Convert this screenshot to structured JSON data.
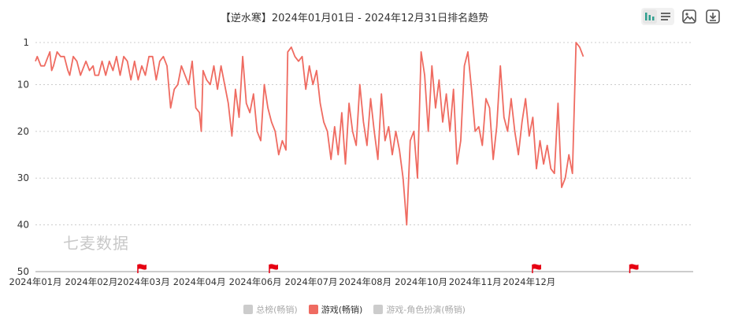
{
  "title": "【逆水寒】2024年01月01日 - 2024年12月31日排名趋势",
  "watermark": "七麦数据",
  "toolbar": {
    "icons": [
      "bar-view-icon",
      "list-view-icon",
      "image-icon",
      "download-icon"
    ]
  },
  "colors": {
    "line": "#ef6b61",
    "grid": "#cccccc",
    "axis_text": "#333333",
    "legend_inactive": "#cccccc",
    "flag": "#e60012"
  },
  "legend": [
    {
      "label": "总榜(畅销)",
      "active": false
    },
    {
      "label": "游戏(畅销)",
      "active": true
    },
    {
      "label": "游戏-角色扮演(畅销)",
      "active": false
    }
  ],
  "chart_data": {
    "type": "line",
    "y_axis": {
      "inverted": true,
      "range": [
        1,
        50
      ],
      "ticks": [
        1,
        10,
        20,
        30,
        40,
        50
      ]
    },
    "x_axis": {
      "range": [
        "2024-01-01",
        "2024-12-31"
      ],
      "ticks": [
        {
          "label": "2024年01月",
          "date": "2024-01-01"
        },
        {
          "label": "2024年02月",
          "date": "2024-02-01"
        },
        {
          "label": "2024年03月",
          "date": "2024-03-01"
        },
        {
          "label": "2024年04月",
          "date": "2024-04-01"
        },
        {
          "label": "2024年06月",
          "date": "2024-05-02"
        },
        {
          "label": "2024年07月",
          "date": "2024-06-02"
        },
        {
          "label": "2024年08月",
          "date": "2024-07-02"
        },
        {
          "label": "2024年10月",
          "date": "2024-08-02"
        },
        {
          "label": "2024年11月",
          "date": "2024-09-01"
        },
        {
          "label": "2024年12月",
          "date": "2024-10-01"
        }
      ]
    },
    "grid": "horizontal-dotted",
    "flags": [
      "2024-02-29",
      "2024-05-12",
      "2024-10-05",
      "2024-11-28"
    ],
    "series": [
      {
        "name": "游戏(畅销)",
        "points": [
          [
            "2024-01-01",
            5
          ],
          [
            "2024-01-02",
            4
          ],
          [
            "2024-01-03",
            5
          ],
          [
            "2024-01-04",
            6
          ],
          [
            "2024-01-06",
            6
          ],
          [
            "2024-01-08",
            4
          ],
          [
            "2024-01-09",
            3
          ],
          [
            "2024-01-10",
            7
          ],
          [
            "2024-01-11",
            6
          ],
          [
            "2024-01-13",
            3
          ],
          [
            "2024-01-15",
            4
          ],
          [
            "2024-01-17",
            4
          ],
          [
            "2024-01-19",
            7
          ],
          [
            "2024-01-20",
            8
          ],
          [
            "2024-01-22",
            4
          ],
          [
            "2024-01-24",
            5
          ],
          [
            "2024-01-26",
            8
          ],
          [
            "2024-01-27",
            7
          ],
          [
            "2024-01-29",
            5
          ],
          [
            "2024-01-31",
            7
          ],
          [
            "2024-02-02",
            6
          ],
          [
            "2024-02-03",
            8
          ],
          [
            "2024-02-05",
            8
          ],
          [
            "2024-02-07",
            5
          ],
          [
            "2024-02-09",
            8
          ],
          [
            "2024-02-11",
            5
          ],
          [
            "2024-02-13",
            7
          ],
          [
            "2024-02-15",
            4
          ],
          [
            "2024-02-17",
            8
          ],
          [
            "2024-02-19",
            4
          ],
          [
            "2024-02-21",
            5
          ],
          [
            "2024-02-23",
            9
          ],
          [
            "2024-02-25",
            5
          ],
          [
            "2024-02-27",
            9
          ],
          [
            "2024-02-29",
            6
          ],
          [
            "2024-03-02",
            8
          ],
          [
            "2024-03-04",
            4
          ],
          [
            "2024-03-06",
            4
          ],
          [
            "2024-03-08",
            9
          ],
          [
            "2024-03-10",
            5
          ],
          [
            "2024-03-12",
            4
          ],
          [
            "2024-03-14",
            6
          ],
          [
            "2024-03-16",
            15
          ],
          [
            "2024-03-18",
            11
          ],
          [
            "2024-03-20",
            10
          ],
          [
            "2024-03-22",
            6
          ],
          [
            "2024-03-24",
            8
          ],
          [
            "2024-03-26",
            10
          ],
          [
            "2024-03-28",
            5
          ],
          [
            "2024-03-30",
            15
          ],
          [
            "2024-04-01",
            16
          ],
          [
            "2024-04-02",
            20
          ],
          [
            "2024-04-03",
            7
          ],
          [
            "2024-04-05",
            9
          ],
          [
            "2024-04-07",
            10
          ],
          [
            "2024-04-09",
            6
          ],
          [
            "2024-04-11",
            11
          ],
          [
            "2024-04-13",
            6
          ],
          [
            "2024-04-15",
            10
          ],
          [
            "2024-04-17",
            14
          ],
          [
            "2024-04-19",
            21
          ],
          [
            "2024-04-21",
            11
          ],
          [
            "2024-04-23",
            17
          ],
          [
            "2024-04-25",
            4
          ],
          [
            "2024-04-27",
            14
          ],
          [
            "2024-04-29",
            16
          ],
          [
            "2024-05-01",
            12
          ],
          [
            "2024-05-03",
            20
          ],
          [
            "2024-05-05",
            22
          ],
          [
            "2024-05-07",
            10
          ],
          [
            "2024-05-09",
            15
          ],
          [
            "2024-05-11",
            18
          ],
          [
            "2024-05-13",
            20
          ],
          [
            "2024-05-15",
            25
          ],
          [
            "2024-05-17",
            22
          ],
          [
            "2024-05-19",
            24
          ],
          [
            "2024-05-20",
            3
          ],
          [
            "2024-05-22",
            2
          ],
          [
            "2024-05-24",
            4
          ],
          [
            "2024-05-26",
            5
          ],
          [
            "2024-05-28",
            4
          ],
          [
            "2024-05-30",
            11
          ],
          [
            "2024-06-01",
            6
          ],
          [
            "2024-06-03",
            10
          ],
          [
            "2024-06-05",
            7
          ],
          [
            "2024-06-07",
            14
          ],
          [
            "2024-06-09",
            18
          ],
          [
            "2024-06-11",
            20
          ],
          [
            "2024-06-13",
            26
          ],
          [
            "2024-06-15",
            19
          ],
          [
            "2024-06-17",
            25
          ],
          [
            "2024-06-19",
            16
          ],
          [
            "2024-06-21",
            27
          ],
          [
            "2024-06-23",
            14
          ],
          [
            "2024-06-25",
            20
          ],
          [
            "2024-06-27",
            23
          ],
          [
            "2024-06-29",
            10
          ],
          [
            "2024-07-01",
            18
          ],
          [
            "2024-07-03",
            23
          ],
          [
            "2024-07-05",
            13
          ],
          [
            "2024-07-07",
            20
          ],
          [
            "2024-07-09",
            26
          ],
          [
            "2024-07-11",
            12
          ],
          [
            "2024-07-13",
            22
          ],
          [
            "2024-07-15",
            19
          ],
          [
            "2024-07-17",
            25
          ],
          [
            "2024-07-19",
            20
          ],
          [
            "2024-07-21",
            24
          ],
          [
            "2024-07-23",
            30
          ],
          [
            "2024-07-25",
            40
          ],
          [
            "2024-07-27",
            22
          ],
          [
            "2024-07-29",
            20
          ],
          [
            "2024-07-31",
            30
          ],
          [
            "2024-08-02",
            3
          ],
          [
            "2024-08-04",
            8
          ],
          [
            "2024-08-06",
            20
          ],
          [
            "2024-08-08",
            6
          ],
          [
            "2024-08-10",
            15
          ],
          [
            "2024-08-12",
            9
          ],
          [
            "2024-08-14",
            18
          ],
          [
            "2024-08-16",
            12
          ],
          [
            "2024-08-18",
            20
          ],
          [
            "2024-08-20",
            11
          ],
          [
            "2024-08-22",
            27
          ],
          [
            "2024-08-24",
            22
          ],
          [
            "2024-08-26",
            6
          ],
          [
            "2024-08-28",
            3
          ],
          [
            "2024-08-30",
            11
          ],
          [
            "2024-09-01",
            20
          ],
          [
            "2024-09-03",
            19
          ],
          [
            "2024-09-05",
            23
          ],
          [
            "2024-09-07",
            13
          ],
          [
            "2024-09-09",
            15
          ],
          [
            "2024-09-11",
            26
          ],
          [
            "2024-09-13",
            19
          ],
          [
            "2024-09-15",
            6
          ],
          [
            "2024-09-17",
            17
          ],
          [
            "2024-09-19",
            20
          ],
          [
            "2024-09-21",
            13
          ],
          [
            "2024-09-23",
            20
          ],
          [
            "2024-09-25",
            25
          ],
          [
            "2024-09-27",
            18
          ],
          [
            "2024-09-29",
            13
          ],
          [
            "2024-10-01",
            21
          ],
          [
            "2024-10-03",
            17
          ],
          [
            "2024-10-05",
            28
          ],
          [
            "2024-10-07",
            22
          ],
          [
            "2024-10-09",
            27
          ],
          [
            "2024-10-11",
            23
          ],
          [
            "2024-10-13",
            28
          ],
          [
            "2024-10-15",
            29
          ],
          [
            "2024-10-17",
            14
          ],
          [
            "2024-10-19",
            32
          ],
          [
            "2024-10-21",
            30
          ],
          [
            "2024-10-23",
            25
          ],
          [
            "2024-10-25",
            29
          ],
          [
            "2024-10-27",
            1
          ],
          [
            "2024-10-29",
            2
          ],
          [
            "2024-10-31",
            4
          ]
        ]
      }
    ]
  }
}
